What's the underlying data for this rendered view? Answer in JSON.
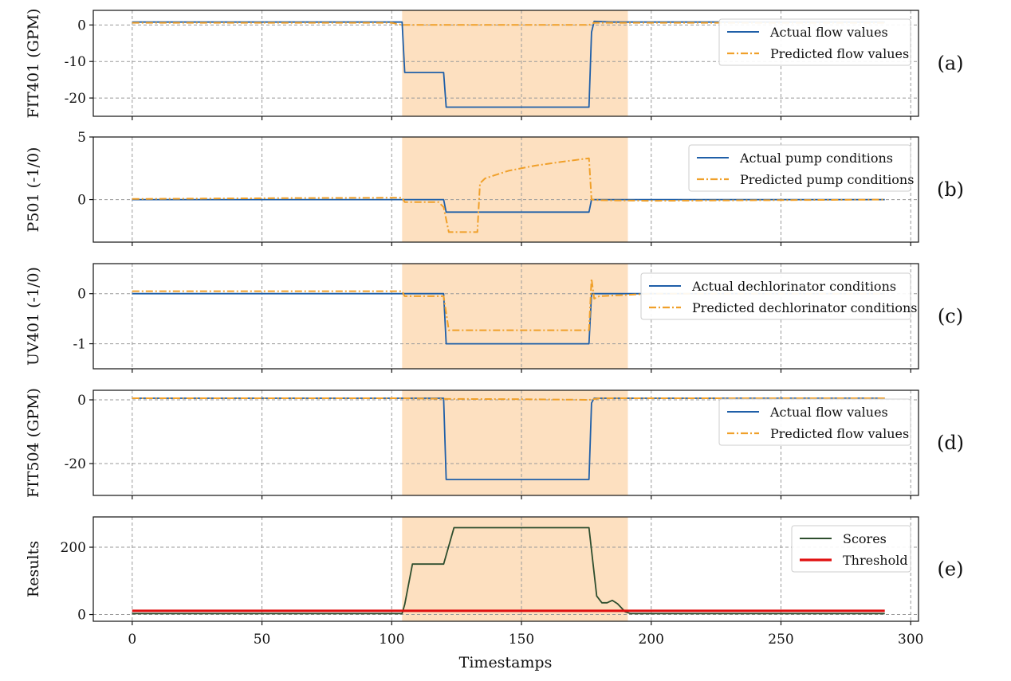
{
  "colors": {
    "actual": "#1f5fa8",
    "predicted": "#f0a02a",
    "scores": "#2e4e2e",
    "threshold": "#e01010",
    "anomaly_band": "#fde0c0"
  },
  "chart_data": {
    "type": "line",
    "xlabel": "Timestamps",
    "xlim": [
      -15,
      303
    ],
    "xticks": [
      0,
      50,
      100,
      150,
      200,
      250,
      300
    ],
    "grid": true,
    "anomaly_window": [
      104,
      191
    ],
    "legend_position": "upper-right",
    "panels": [
      {
        "label": "(a)",
        "ylabel": "FIT401 (GPM)",
        "ylim": [
          -25,
          4
        ],
        "yticks": [
          0,
          -10,
          -20
        ],
        "legend_entries": [
          "Actual flow values",
          "Predicted flow values"
        ],
        "series": [
          {
            "name": "Actual flow values",
            "style": "solid",
            "x": [
              0,
              104,
              105,
              120,
              121,
              176,
              177,
              178,
              185,
              290
            ],
            "y": [
              0.8,
              0.8,
              -13,
              -13,
              -22.5,
              -22.5,
              -2,
              1,
              0.8,
              0.8
            ]
          },
          {
            "name": "Predicted flow values",
            "style": "dashdot",
            "x": [
              0,
              100,
              104,
              150,
              176,
              178,
              185,
              290
            ],
            "y": [
              0.6,
              0.6,
              0,
              0,
              0,
              0.6,
              0.6,
              0.6
            ]
          }
        ]
      },
      {
        "label": "(b)",
        "ylabel": "P501 (-1/0)",
        "ylim": [
          -3.4,
          5
        ],
        "yticks": [
          5,
          0
        ],
        "legend_entries": [
          "Actual pump conditions",
          "Predicted pump conditions"
        ],
        "series": [
          {
            "name": "Actual pump conditions",
            "style": "solid",
            "x": [
              0,
              120,
              121,
              176,
              177,
              290
            ],
            "y": [
              0,
              0,
              -1,
              -1,
              0,
              0
            ]
          },
          {
            "name": "Predicted pump conditions",
            "style": "dashdot",
            "x": [
              0,
              60,
              104,
              105,
              118,
              120,
              122,
              133,
              134,
              136,
              145,
              155,
              165,
              176,
              177,
              180,
              200,
              290
            ],
            "y": [
              0.05,
              0.12,
              0.15,
              -0.2,
              -0.2,
              -0.6,
              -2.6,
              -2.6,
              1.3,
              1.7,
              2.3,
              2.7,
              3.0,
              3.3,
              0,
              -0.05,
              -0.1,
              0
            ]
          }
        ]
      },
      {
        "label": "(c)",
        "ylabel": "UV401 (-1/0)",
        "ylim": [
          -1.5,
          0.6
        ],
        "yticks": [
          0,
          -1
        ],
        "legend_entries": [
          "Actual dechlorinator conditions",
          "Predicted dechlorinator conditions"
        ],
        "series": [
          {
            "name": "Actual dechlorinator conditions",
            "style": "solid",
            "x": [
              0,
              120,
              121,
              176,
              177,
              290
            ],
            "y": [
              0,
              0,
              -1,
              -1,
              0,
              0
            ]
          },
          {
            "name": "Predicted dechlorinator conditions",
            "style": "dashdot",
            "x": [
              0,
              104,
              105,
              120,
              122,
              176,
              177,
              178,
              180,
              200,
              290
            ],
            "y": [
              0.05,
              0.05,
              -0.05,
              -0.05,
              -0.73,
              -0.73,
              0.3,
              -0.1,
              -0.05,
              0,
              0
            ]
          }
        ]
      },
      {
        "label": "(d)",
        "ylabel": "FIT504 (GPM)",
        "ylim": [
          -30,
          3
        ],
        "yticks": [
          0,
          -20
        ],
        "legend_entries": [
          "Actual flow values",
          "Predicted flow values"
        ],
        "series": [
          {
            "name": "Actual flow values",
            "style": "solid",
            "x": [
              0,
              120,
              121,
              176,
              177,
              178,
              290
            ],
            "y": [
              0.5,
              0.5,
              -25,
              -25,
              -1,
              0.5,
              0.5
            ]
          },
          {
            "name": "Predicted flow values",
            "style": "dashdot",
            "x": [
              0,
              104,
              120,
              150,
              176,
              180,
              290
            ],
            "y": [
              0.5,
              0.5,
              0.3,
              0.2,
              0,
              0.5,
              0.5
            ]
          }
        ]
      },
      {
        "label": "(e)",
        "ylabel": "Results",
        "ylim": [
          -20,
          290
        ],
        "yticks": [
          200,
          0
        ],
        "legend_entries": [
          "Scores",
          "Threshold"
        ],
        "series": [
          {
            "name": "Scores",
            "style": "solid",
            "x": [
              0,
              104,
              105,
              108,
              120,
              124,
              176,
              179,
              181,
              183,
              185,
              187,
              190,
              192,
              290
            ],
            "y": [
              3,
              3,
              30,
              150,
              150,
              258,
              258,
              55,
              35,
              35,
              42,
              32,
              8,
              3,
              3
            ]
          },
          {
            "name": "Threshold",
            "style": "solid_thick",
            "x": [
              0,
              290
            ],
            "y": [
              11,
              11
            ]
          }
        ]
      }
    ]
  }
}
